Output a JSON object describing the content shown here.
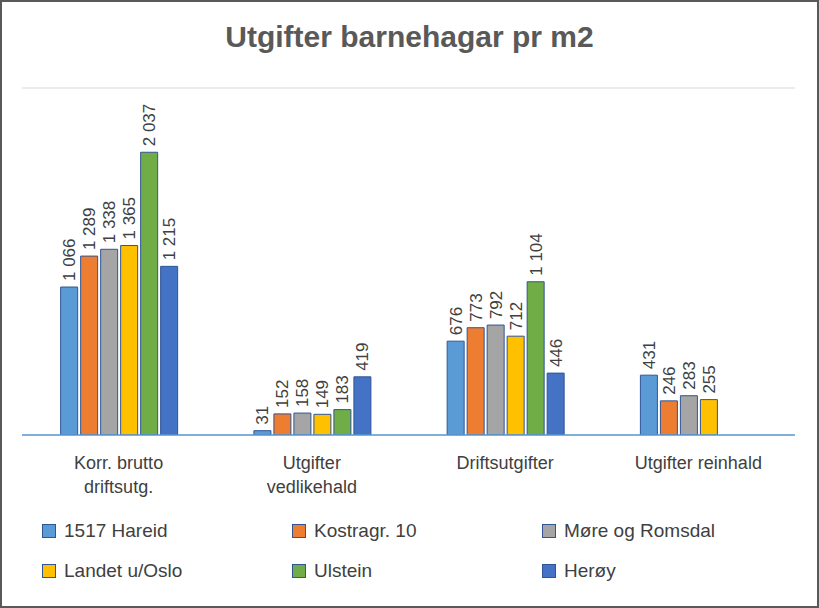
{
  "chart_data": {
    "type": "bar",
    "title": "Utgifter barnehagar pr m2",
    "categories": [
      "Korr.  brutto driftsutg.",
      "Utgifter vedlikehald",
      "Driftsutgifter",
      "Utgifter reinhald"
    ],
    "series": [
      {
        "name": "1517 Hareid",
        "color": "#5B9BD5",
        "values": [
          1066,
          31,
          676,
          431
        ],
        "value_labels": [
          "1 066",
          "31",
          "676",
          "431"
        ]
      },
      {
        "name": "Kostragr. 10",
        "color": "#ED7D31",
        "values": [
          1289,
          152,
          773,
          246
        ],
        "value_labels": [
          "1 289",
          "152",
          "773",
          "246"
        ]
      },
      {
        "name": "Møre og Romsdal",
        "color": "#A5A5A5",
        "values": [
          1338,
          158,
          792,
          283
        ],
        "value_labels": [
          "1 338",
          "158",
          "792",
          "283"
        ]
      },
      {
        "name": "Landet u/Oslo",
        "color": "#FFC000",
        "values": [
          1365,
          149,
          712,
          255
        ],
        "value_labels": [
          "1 365",
          "149",
          "712",
          "255"
        ]
      },
      {
        "name": "Ulstein",
        "color": "#70AD47",
        "values": [
          2037,
          183,
          1104,
          null
        ],
        "value_labels": [
          "2 037",
          "183",
          "1 104",
          null
        ]
      },
      {
        "name": "Herøy",
        "color": "#4472C4",
        "values": [
          1215,
          419,
          446,
          null
        ],
        "value_labels": [
          "1 215",
          "419",
          "446",
          null
        ]
      }
    ],
    "ylim": [
      0,
      2500
    ],
    "yticks": [
      0,
      500,
      1000,
      1500,
      2000,
      2500
    ],
    "grid": true,
    "tick_labels": "x",
    "data_labels": true
  }
}
